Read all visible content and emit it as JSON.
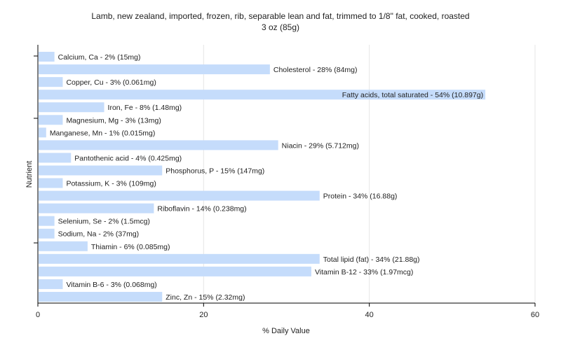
{
  "chart_data": {
    "type": "bar",
    "orientation": "horizontal",
    "title_line1": "Lamb, new zealand, imported, frozen, rib, separable lean and fat, trimmed to 1/8\" fat, cooked, roasted",
    "title_line2": "3 oz (85g)",
    "xlabel": "% Daily Value",
    "ylabel": "Nutrient",
    "xlim": [
      0,
      60
    ],
    "xticks": [
      "0",
      "20",
      "40",
      "60"
    ],
    "grid": true,
    "bar_color": "#c5dcfb",
    "categories": [
      "Calcium, Ca",
      "Cholesterol",
      "Copper, Cu",
      "Fatty acids, total saturated",
      "Iron, Fe",
      "Magnesium, Mg",
      "Manganese, Mn",
      "Niacin",
      "Pantothenic acid",
      "Phosphorus, P",
      "Potassium, K",
      "Protein",
      "Riboflavin",
      "Selenium, Se",
      "Sodium, Na",
      "Thiamin",
      "Total lipid (fat)",
      "Vitamin B-12",
      "Vitamin B-6",
      "Zinc, Zn"
    ],
    "values": [
      2,
      28,
      3,
      54,
      8,
      3,
      1,
      29,
      4,
      15,
      3,
      34,
      14,
      2,
      2,
      6,
      34,
      33,
      3,
      15
    ],
    "labels": [
      "Calcium, Ca - 2% (15mg)",
      "Cholesterol - 28% (84mg)",
      "Copper, Cu - 3% (0.061mg)",
      "Fatty acids, total saturated - 54% (10.897g)",
      "Iron, Fe - 8% (1.48mg)",
      "Magnesium, Mg - 3% (13mg)",
      "Manganese, Mn - 1% (0.015mg)",
      "Niacin - 29% (5.712mg)",
      "Pantothenic acid - 4% (0.425mg)",
      "Phosphorus, P - 15% (147mg)",
      "Potassium, K - 3% (109mg)",
      "Protein - 34% (16.88g)",
      "Riboflavin - 14% (0.238mg)",
      "Selenium, Se - 2% (1.5mcg)",
      "Sodium, Na - 2% (37mg)",
      "Thiamin - 6% (0.085mg)",
      "Total lipid (fat) - 34% (21.88g)",
      "Vitamin B-12 - 33% (1.97mcg)",
      "Vitamin B-6 - 3% (0.068mg)",
      "Zinc, Zn - 15% (2.32mg)"
    ]
  }
}
